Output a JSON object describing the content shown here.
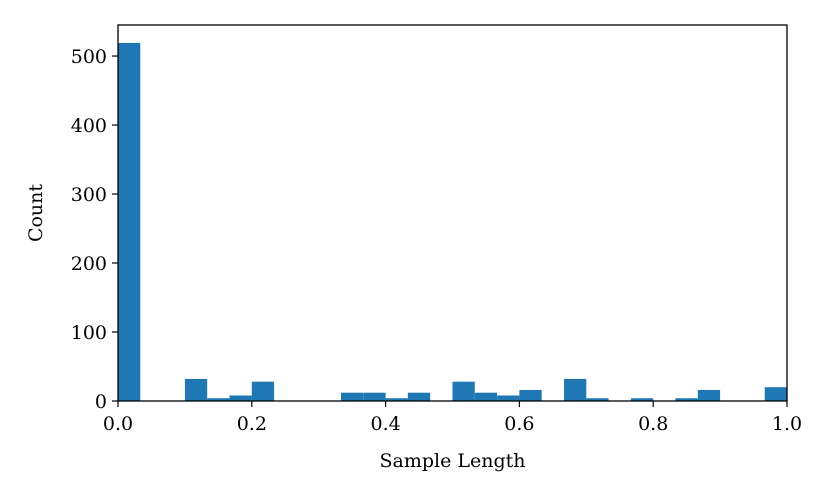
{
  "chart_data": {
    "type": "bar",
    "title": "",
    "xlabel": "Sample Length",
    "ylabel": "Count",
    "xlim": [
      0.0,
      1.0
    ],
    "ylim": [
      0,
      545
    ],
    "grid": false,
    "bar_color": "#1f77b4",
    "bin_width": 0.0333,
    "x_ticks": [
      {
        "value": 0.0,
        "label": "0.0"
      },
      {
        "value": 0.2,
        "label": "0.2"
      },
      {
        "value": 0.4,
        "label": "0.4"
      },
      {
        "value": 0.6,
        "label": "0.6"
      },
      {
        "value": 0.8,
        "label": "0.8"
      },
      {
        "value": 1.0,
        "label": "1.0"
      }
    ],
    "y_ticks": [
      {
        "value": 0,
        "label": "0"
      },
      {
        "value": 100,
        "label": "100"
      },
      {
        "value": 200,
        "label": "200"
      },
      {
        "value": 300,
        "label": "300"
      },
      {
        "value": 400,
        "label": "400"
      },
      {
        "value": 500,
        "label": "500"
      }
    ],
    "bins": [
      {
        "x": 0.0,
        "value": 519
      },
      {
        "x": 0.0333,
        "value": 0
      },
      {
        "x": 0.0667,
        "value": 0
      },
      {
        "x": 0.1,
        "value": 32
      },
      {
        "x": 0.1333,
        "value": 4
      },
      {
        "x": 0.1667,
        "value": 8
      },
      {
        "x": 0.2,
        "value": 28
      },
      {
        "x": 0.2333,
        "value": 0
      },
      {
        "x": 0.2667,
        "value": 0
      },
      {
        "x": 0.3,
        "value": 0
      },
      {
        "x": 0.3333,
        "value": 12
      },
      {
        "x": 0.3667,
        "value": 12
      },
      {
        "x": 0.4,
        "value": 4
      },
      {
        "x": 0.4333,
        "value": 12
      },
      {
        "x": 0.4667,
        "value": 0
      },
      {
        "x": 0.5,
        "value": 28
      },
      {
        "x": 0.5333,
        "value": 12
      },
      {
        "x": 0.5667,
        "value": 8
      },
      {
        "x": 0.6,
        "value": 16
      },
      {
        "x": 0.6333,
        "value": 0
      },
      {
        "x": 0.6667,
        "value": 32
      },
      {
        "x": 0.7,
        "value": 4
      },
      {
        "x": 0.7333,
        "value": 0
      },
      {
        "x": 0.7667,
        "value": 4
      },
      {
        "x": 0.8,
        "value": 0
      },
      {
        "x": 0.8333,
        "value": 4
      },
      {
        "x": 0.8667,
        "value": 16
      },
      {
        "x": 0.9,
        "value": 0
      },
      {
        "x": 0.9333,
        "value": 0
      },
      {
        "x": 0.9667,
        "value": 20
      }
    ]
  }
}
